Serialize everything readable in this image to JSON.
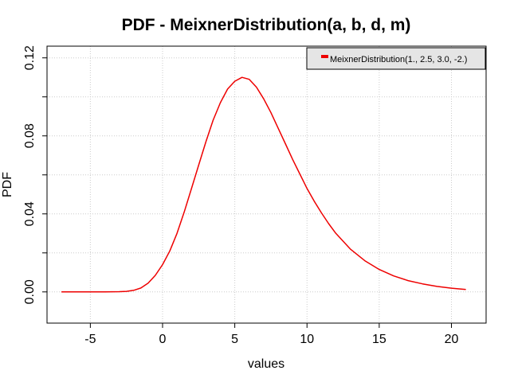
{
  "chart_data": {
    "type": "line",
    "title": "PDF - MeixnerDistribution(a, b, d, m)",
    "xlabel": "values",
    "ylabel": "PDF",
    "xlim": [
      -8.0,
      22.4
    ],
    "ylim": [
      -0.016,
      0.126
    ],
    "x_ticks": [
      -5,
      0,
      5,
      10,
      15,
      20
    ],
    "x_tick_labels": [
      "-5",
      "0",
      "5",
      "10",
      "15",
      "20"
    ],
    "y_ticks": [
      0.0,
      0.04,
      0.08,
      0.12
    ],
    "y_tick_labels": [
      "0.00",
      "0.04",
      "0.08",
      "0.12"
    ],
    "grid": true,
    "legend_position": "top-right",
    "series": [
      {
        "name": "MeixnerDistribution(1., 2.5, 3.0, -2.)",
        "color": "#ee0000",
        "x": [
          -7.0,
          -6.0,
          -5.0,
          -4.0,
          -3.0,
          -2.5,
          -2.0,
          -1.5,
          -1.0,
          -0.5,
          0.0,
          0.5,
          1.0,
          1.5,
          2.0,
          2.5,
          3.0,
          3.5,
          4.0,
          4.5,
          5.0,
          5.5,
          6.0,
          6.5,
          7.0,
          7.5,
          8.0,
          8.5,
          9.0,
          9.5,
          10.0,
          10.5,
          11.0,
          11.5,
          12.0,
          13.0,
          14.0,
          15.0,
          16.0,
          17.0,
          18.0,
          19.0,
          20.0,
          21.0
        ],
        "y": [
          0.0,
          0.0,
          0.0,
          0.0,
          0.0001,
          0.0003,
          0.0008,
          0.002,
          0.0045,
          0.0085,
          0.014,
          0.021,
          0.03,
          0.041,
          0.053,
          0.065,
          0.077,
          0.088,
          0.097,
          0.104,
          0.108,
          0.11,
          0.109,
          0.105,
          0.099,
          0.092,
          0.084,
          0.076,
          0.068,
          0.0605,
          0.053,
          0.0465,
          0.0405,
          0.035,
          0.03,
          0.022,
          0.016,
          0.0115,
          0.0082,
          0.0058,
          0.0041,
          0.0028,
          0.0019,
          0.0012
        ]
      }
    ]
  }
}
